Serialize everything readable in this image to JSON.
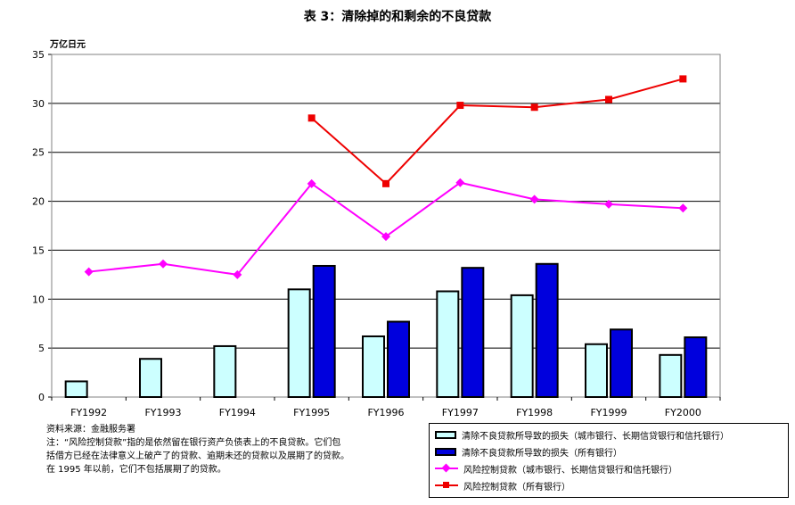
{
  "title": "表 3：清除掉的和剩余的不良贷款",
  "unit_label": "万亿日元",
  "chart_data": {
    "type": "bar+line",
    "title": "表 3：清除掉的和剩余的不良贷款",
    "ylabel": "万亿日元",
    "ylim": [
      0,
      35
    ],
    "yticks": [
      0,
      5,
      10,
      15,
      20,
      25,
      30,
      35
    ],
    "grid": true,
    "categories": [
      "FY1992",
      "FY1993",
      "FY1994",
      "FY1995",
      "FY1996",
      "FY1997",
      "FY1998",
      "FY1999",
      "FY2000"
    ],
    "series": [
      {
        "name": "清除不良贷款所导致的损失（城市银行、长期信贷银行和信托银行）",
        "type": "bar",
        "color": "#ccffff",
        "values": [
          1.6,
          3.9,
          5.2,
          11.0,
          6.2,
          10.8,
          10.4,
          5.4,
          4.3
        ]
      },
      {
        "name": "清除不良贷款所导致的损失（所有银行）",
        "type": "bar",
        "color": "#0000dd",
        "values": [
          null,
          null,
          null,
          13.4,
          7.7,
          13.2,
          13.6,
          6.9,
          6.1
        ]
      },
      {
        "name": "风险控制贷款（城市银行、长期信贷银行和信托银行）",
        "type": "line",
        "color": "#ff00ff",
        "marker": "diamond",
        "values": [
          12.8,
          13.6,
          12.5,
          21.8,
          16.4,
          21.9,
          20.2,
          19.7,
          19.3
        ]
      },
      {
        "name": "风险控制贷款（所有银行）",
        "type": "line",
        "color": "#ee0000",
        "marker": "square",
        "values": [
          null,
          null,
          null,
          28.5,
          21.8,
          29.8,
          29.6,
          30.4,
          32.5
        ]
      }
    ],
    "legend_position": "bottom-right"
  },
  "notes": [
    "资料来源：金融服务署",
    "注：“风险控制贷款”指的是依然留在银行资产负债表上的不良贷款。它们包",
    "括借方已经在法律意义上破产了的贷款、逾期未还的贷款以及展期了的贷款。",
    "在 1995 年以前，它们不包括展期了的贷款。"
  ]
}
